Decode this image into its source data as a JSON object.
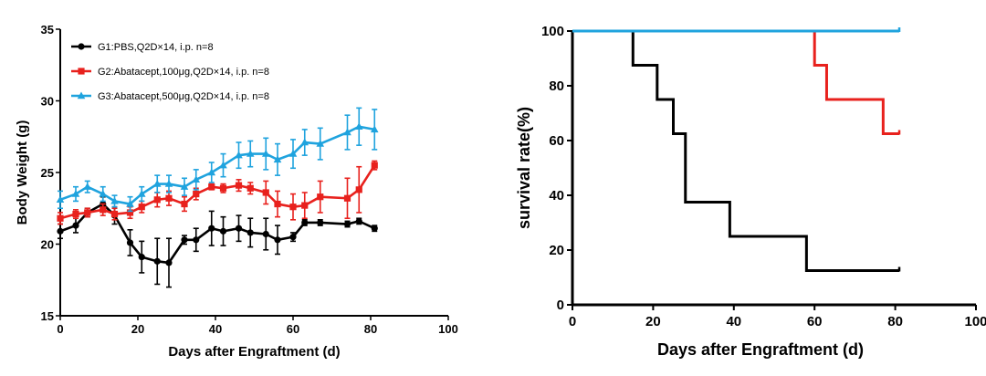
{
  "chart_data": [
    {
      "type": "line",
      "title": "",
      "xlabel": "Days after Engraftment (d)",
      "ylabel": "Body Weight (g)",
      "xlim": [
        0,
        100
      ],
      "ylim": [
        15,
        35
      ],
      "xticks": [
        0,
        20,
        40,
        60,
        80,
        100
      ],
      "yticks": [
        15,
        20,
        25,
        30,
        35
      ],
      "legend_position": "top-left",
      "series": [
        {
          "name": "G1:PBS,Q2D×14, i.p. n=8",
          "color": "#000000",
          "marker": "circle",
          "x": [
            0,
            4,
            7,
            11,
            14,
            18,
            21,
            25,
            28,
            32,
            35,
            39,
            42,
            46,
            49,
            53,
            56,
            60,
            63,
            67,
            74,
            77,
            81
          ],
          "y": [
            20.9,
            21.3,
            22.2,
            22.8,
            22.0,
            20.1,
            19.1,
            18.8,
            18.7,
            20.3,
            20.3,
            21.1,
            20.9,
            21.1,
            20.8,
            20.7,
            20.3,
            20.5,
            21.5,
            21.5,
            21.4,
            21.6,
            21.1
          ],
          "err": [
            0.5,
            0.5,
            0.3,
            0.5,
            0.6,
            0.9,
            1.1,
            1.6,
            1.7,
            0.3,
            0.8,
            1.2,
            1.0,
            0.9,
            1.0,
            1.1,
            1.0,
            0.3,
            0.2,
            0.2,
            0.2,
            0.2,
            0.2
          ]
        },
        {
          "name": "G2:Abatacept,100μg,Q2D×14, i.p. n=8",
          "color": "#e8211d",
          "marker": "square",
          "x": [
            0,
            4,
            7,
            11,
            14,
            18,
            21,
            25,
            28,
            32,
            35,
            39,
            42,
            46,
            49,
            53,
            56,
            60,
            63,
            67,
            74,
            77,
            81
          ],
          "y": [
            21.8,
            22.1,
            22.2,
            22.4,
            22.1,
            22.2,
            22.6,
            23.1,
            23.2,
            22.8,
            23.5,
            24.0,
            23.9,
            24.1,
            23.9,
            23.6,
            22.8,
            22.6,
            22.7,
            23.3,
            23.2,
            23.8,
            25.5
          ],
          "err": [
            0.4,
            0.3,
            0.3,
            0.4,
            0.4,
            0.4,
            0.4,
            0.5,
            0.5,
            0.5,
            0.4,
            0.2,
            0.3,
            0.4,
            0.4,
            0.8,
            0.9,
            0.9,
            0.9,
            1.1,
            1.4,
            1.6,
            0.3
          ]
        },
        {
          "name": "G3:Abatacept,500μg,Q2D×14, i.p. n=8",
          "color": "#1fa3de",
          "marker": "triangle",
          "x": [
            0,
            4,
            7,
            11,
            14,
            18,
            21,
            25,
            28,
            32,
            35,
            39,
            42,
            46,
            49,
            53,
            56,
            60,
            63,
            67,
            74,
            77,
            81
          ],
          "y": [
            23.1,
            23.5,
            24.0,
            23.5,
            23.0,
            22.8,
            23.5,
            24.2,
            24.2,
            24.0,
            24.5,
            25.0,
            25.5,
            26.2,
            26.3,
            26.3,
            25.9,
            26.3,
            27.1,
            27.0,
            27.8,
            28.2,
            28.0
          ],
          "err": [
            0.6,
            0.5,
            0.4,
            0.5,
            0.4,
            0.5,
            0.5,
            0.6,
            0.6,
            0.6,
            0.7,
            0.7,
            0.8,
            0.9,
            0.9,
            1.1,
            1.1,
            1.0,
            0.9,
            1.1,
            1.2,
            1.3,
            1.4
          ]
        }
      ]
    },
    {
      "type": "line",
      "title": "",
      "xlabel": "Days after Engraftment (d)",
      "ylabel": "survival rate(%)",
      "xlim": [
        0,
        100
      ],
      "ylim": [
        0,
        100
      ],
      "xticks": [
        0,
        20,
        40,
        60,
        80,
        100
      ],
      "yticks": [
        0,
        20,
        40,
        60,
        80,
        100
      ],
      "step": true,
      "series": [
        {
          "name": "G1",
          "color": "#000000",
          "x": [
            0,
            15,
            21,
            25,
            28,
            39,
            58,
            81
          ],
          "y": [
            100,
            87.5,
            75,
            62.5,
            37.5,
            25,
            12.5,
            12.5
          ]
        },
        {
          "name": "G2",
          "color": "#e8211d",
          "x": [
            0,
            60,
            63,
            77,
            81
          ],
          "y": [
            100,
            87.5,
            75,
            62.5,
            62.5
          ]
        },
        {
          "name": "G3",
          "color": "#1fa3de",
          "x": [
            0,
            81
          ],
          "y": [
            100,
            100
          ]
        }
      ]
    }
  ]
}
